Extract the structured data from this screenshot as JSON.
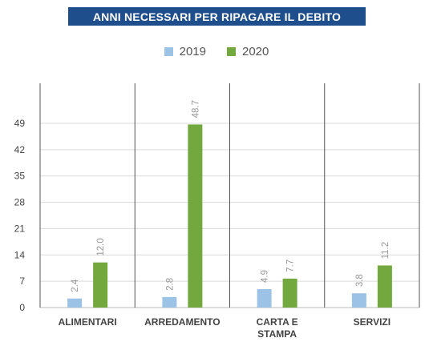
{
  "chart_data": {
    "type": "bar",
    "title": "ANNI NECESSARI PER RIPAGARE IL DEBITO",
    "categories": [
      [
        "ALIMENTARI"
      ],
      [
        "ARREDAMENTO"
      ],
      [
        "CARTA E",
        "STAMPA"
      ],
      [
        "SERVIZI"
      ]
    ],
    "series": [
      {
        "name": "2019",
        "color": "#9cc3e5",
        "values": [
          2.4,
          2.8,
          4.9,
          3.8
        ],
        "labels": [
          "2.4",
          "2.8",
          "4.9",
          "3.8"
        ]
      },
      {
        "name": "2020",
        "color": "#72a83e",
        "values": [
          12.0,
          48.7,
          7.7,
          11.2
        ],
        "labels": [
          "12.0",
          "48.7",
          "7.7",
          "11.2"
        ]
      }
    ],
    "yticks": [
      0,
      7,
      14,
      21,
      28,
      35,
      42,
      49
    ],
    "ylim": [
      0,
      49
    ],
    "grid": true,
    "legend_position": "top-center"
  }
}
